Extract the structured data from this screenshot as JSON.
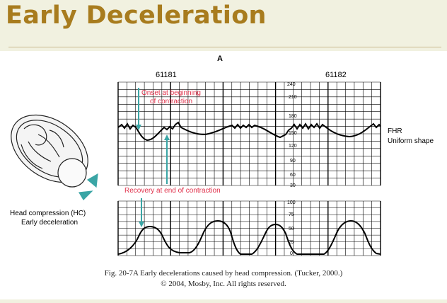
{
  "slide": {
    "title": "Early Deceleration"
  },
  "figure": {
    "panel_letter": "A",
    "strip_numbers": [
      "61181",
      "61182"
    ],
    "fhr_scale": [
      "240",
      "210",
      "180",
      "150",
      "120",
      "90",
      "60",
      "30"
    ],
    "uc_scale": [
      "100",
      "75",
      "50",
      "25",
      "0"
    ],
    "annotation_onset": [
      "Onset at beginning",
      "of contraction"
    ],
    "annotation_recovery": "Recovery at end of contraction",
    "fhr_label": [
      "FHR",
      "Uniform shape"
    ],
    "illustration_label": [
      "Head compression (HC)",
      "Early deceleration"
    ],
    "caption_line1": "Fig. 20-7A Early decelerations caused by head compression. (Tucker, 2000.)",
    "caption_line2": "© 2004, Mosby, Inc. All rights reserved."
  },
  "colors": {
    "title": "#a87c1e",
    "annotation": "#e0304a",
    "arrow": "#3aa5a5",
    "grid": "#000000",
    "background": "#f1f1e0"
  }
}
